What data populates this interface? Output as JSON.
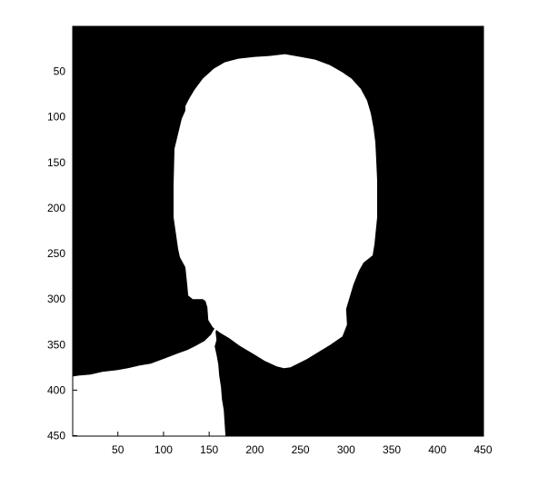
{
  "chart_data": {
    "type": "heatmap",
    "title": "",
    "xlabel": "",
    "ylabel": "",
    "description_colormap": [
      "#000000",
      "#ffffff"
    ],
    "xlim": [
      0.5,
      450.5
    ],
    "ylim": [
      0.5,
      450.5
    ],
    "y_reversed": true,
    "grid": false,
    "xticks": [
      50,
      100,
      150,
      200,
      250,
      300,
      350,
      400,
      450
    ],
    "yticks": [
      50,
      100,
      150,
      200,
      250,
      300,
      350,
      400,
      450
    ],
    "xtick_labels": [
      "50",
      "100",
      "150",
      "200",
      "250",
      "300",
      "350",
      "400",
      "450"
    ],
    "ytick_labels": [
      "50",
      "100",
      "150",
      "200",
      "250",
      "300",
      "350",
      "400",
      "450"
    ],
    "background_value": 0,
    "foreground_value": 1,
    "head_outline": [
      [
        132,
        300
      ],
      [
        127,
        296
      ],
      [
        126,
        285
      ],
      [
        124,
        265
      ],
      [
        118,
        254
      ],
      [
        116,
        245
      ],
      [
        111,
        210
      ],
      [
        111,
        175
      ],
      [
        112,
        135
      ],
      [
        120,
        102
      ],
      [
        124,
        93
      ],
      [
        124,
        88
      ],
      [
        128,
        80
      ],
      [
        134,
        70
      ],
      [
        143,
        58
      ],
      [
        155,
        47
      ],
      [
        167,
        40
      ],
      [
        182,
        36
      ],
      [
        200,
        34
      ],
      [
        216,
        33
      ],
      [
        233,
        31
      ],
      [
        250,
        34
      ],
      [
        266,
        37
      ],
      [
        282,
        43
      ],
      [
        296,
        51
      ],
      [
        306,
        58
      ],
      [
        316,
        69
      ],
      [
        323,
        82
      ],
      [
        327,
        96
      ],
      [
        330,
        112
      ],
      [
        332,
        128
      ],
      [
        333,
        148
      ],
      [
        334,
        170
      ],
      [
        334,
        190
      ],
      [
        334,
        210
      ],
      [
        331,
        240
      ],
      [
        329,
        252
      ],
      [
        319,
        260
      ],
      [
        314,
        269
      ],
      [
        308,
        284
      ],
      [
        300,
        311
      ],
      [
        301,
        328
      ],
      [
        296,
        341
      ],
      [
        283,
        350
      ],
      [
        270,
        358
      ],
      [
        257,
        366
      ],
      [
        245,
        372
      ],
      [
        239,
        375
      ],
      [
        232,
        376
      ],
      [
        224,
        374
      ],
      [
        211,
        368
      ],
      [
        198,
        360
      ],
      [
        183,
        351
      ],
      [
        172,
        343
      ],
      [
        162,
        337
      ],
      [
        154,
        331
      ],
      [
        149,
        323
      ],
      [
        148,
        309
      ],
      [
        146,
        302
      ],
      [
        143,
        300
      ]
    ],
    "shoulder_outline": [
      [
        0,
        385
      ],
      [
        7,
        384
      ],
      [
        20,
        383
      ],
      [
        33,
        380
      ],
      [
        50,
        378
      ],
      [
        61,
        376
      ],
      [
        74,
        373
      ],
      [
        86,
        371
      ],
      [
        94,
        368
      ],
      [
        102,
        365
      ],
      [
        115,
        360
      ],
      [
        126,
        356
      ],
      [
        136,
        351
      ],
      [
        145,
        346
      ],
      [
        152,
        339
      ],
      [
        156,
        332
      ],
      [
        158,
        325
      ],
      [
        161,
        320
      ],
      [
        163,
        318
      ],
      [
        162,
        322
      ],
      [
        159,
        330
      ],
      [
        157,
        336
      ],
      [
        158,
        345
      ],
      [
        156,
        352
      ],
      [
        158,
        361
      ],
      [
        160,
        372
      ],
      [
        161,
        384
      ],
      [
        163,
        397
      ],
      [
        164,
        410
      ],
      [
        166,
        422
      ],
      [
        167,
        437
      ],
      [
        168,
        452
      ],
      [
        0,
        452
      ]
    ]
  }
}
